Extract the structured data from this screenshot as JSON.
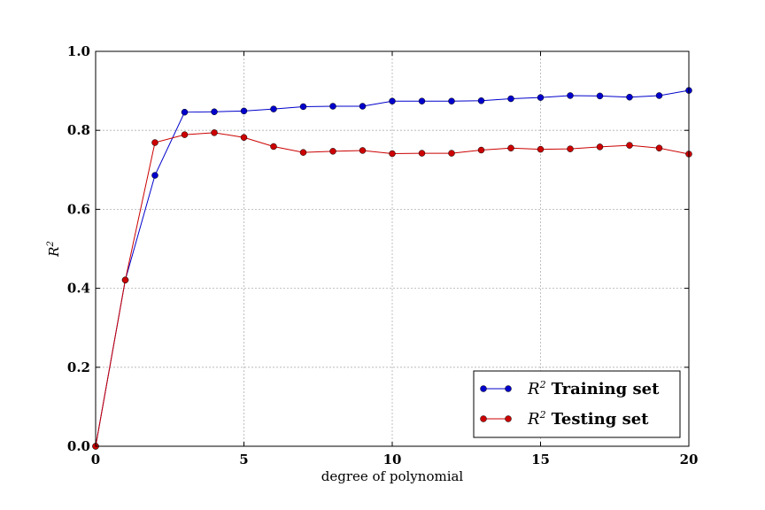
{
  "chart_data": {
    "type": "line",
    "title": "",
    "xlabel": "degree of polynomial",
    "ylabel_base": "R",
    "ylabel_sup": "2",
    "xlim": [
      0,
      20
    ],
    "ylim": [
      0.0,
      1.0
    ],
    "xticks": [
      "0",
      "5",
      "10",
      "15",
      "20"
    ],
    "yticks": [
      "0.0",
      "0.2",
      "0.4",
      "0.6",
      "0.8",
      "1.0"
    ],
    "grid": true,
    "legend_position": "lower-right",
    "x": [
      0,
      1,
      2,
      3,
      4,
      5,
      6,
      7,
      8,
      9,
      10,
      11,
      12,
      13,
      14,
      15,
      16,
      17,
      18,
      19,
      20
    ],
    "series": [
      {
        "legend_math": "R",
        "legend_sup": "2",
        "legend_text": "Training set",
        "color": "#0000cc",
        "values": [
          0.0,
          0.421,
          0.686,
          0.846,
          0.847,
          0.849,
          0.854,
          0.86,
          0.861,
          0.861,
          0.874,
          0.874,
          0.874,
          0.875,
          0.88,
          0.883,
          0.888,
          0.887,
          0.884,
          0.888,
          0.901
        ]
      },
      {
        "legend_math": "R",
        "legend_sup": "2",
        "legend_text": "Testing set",
        "color": "#cc0000",
        "values": [
          0.0,
          0.421,
          0.769,
          0.789,
          0.794,
          0.782,
          0.759,
          0.744,
          0.747,
          0.749,
          0.741,
          0.742,
          0.742,
          0.75,
          0.755,
          0.752,
          0.753,
          0.758,
          0.762,
          0.755,
          0.74
        ]
      }
    ]
  }
}
